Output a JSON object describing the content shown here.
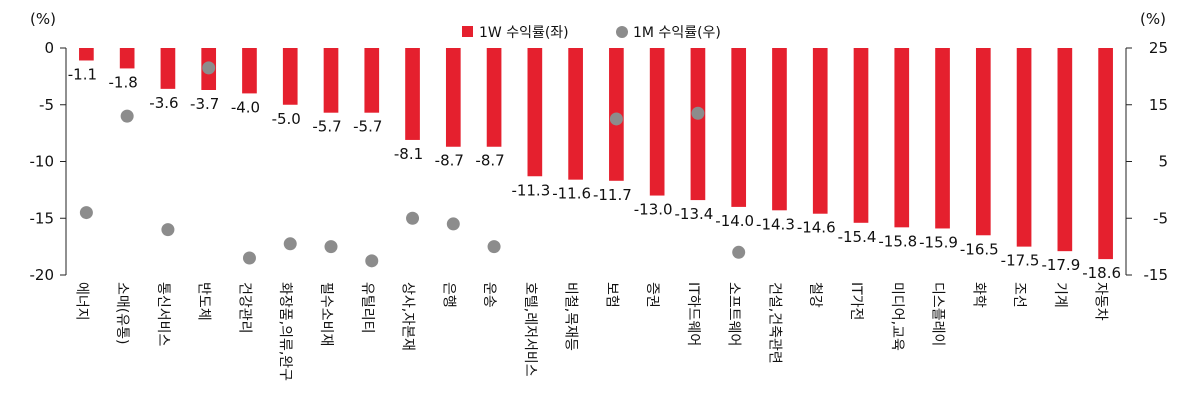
{
  "chart_data": {
    "type": "bar",
    "left_unit": "(%)",
    "right_unit": "(%)",
    "categories": [
      "에너지",
      "소매(유통)",
      "통신서비스",
      "반도체",
      "건강관리",
      "화장품,의류,완구",
      "필수소비재",
      "유틸리티",
      "상사,자본재",
      "은행",
      "운송",
      "호텔,레저서비스",
      "비철,목재등",
      "보험",
      "증권",
      "IT하드웨어",
      "소프트웨어",
      "건설,건축관련",
      "철강",
      "IT가전",
      "미디어,교육",
      "디스플레이",
      "화학",
      "조선",
      "기계",
      "자동차"
    ],
    "series": [
      {
        "name": "1W 수익률(좌)",
        "type": "bar",
        "axis": "left",
        "color": "#e5202e",
        "values": [
          -1.1,
          -1.8,
          -3.6,
          -3.7,
          -4.0,
          -5.0,
          -5.7,
          -5.7,
          -8.1,
          -8.7,
          -8.7,
          -11.3,
          -11.6,
          -11.7,
          -13.0,
          -13.4,
          -14.0,
          -14.3,
          -14.6,
          -15.4,
          -15.8,
          -15.9,
          -16.5,
          -17.5,
          -17.9,
          -18.6
        ],
        "labels": [
          "-1.1",
          "-1.8",
          "-3.6",
          "-3.7",
          "-4.0",
          "-5.0",
          "-5.7",
          "-5.7",
          "-8.1",
          "-8.7",
          "-8.7",
          "-11.3",
          "-11.6",
          "-11.7",
          "-13.0",
          "-13.4",
          "-14.0",
          "-14.3",
          "-14.6",
          "-15.4",
          "-15.8",
          "-15.9",
          "-16.5",
          "-17.5",
          "-17.9",
          "-18.6"
        ]
      },
      {
        "name": "1M 수익률(우)",
        "type": "scatter",
        "axis": "right",
        "color": "#8c8c8c",
        "values": [
          -4,
          13,
          -7,
          21.5,
          -12,
          -9.5,
          -10,
          -12.5,
          -5,
          -6,
          -10,
          null,
          null,
          12.5,
          null,
          13.5,
          -11,
          null,
          null,
          null,
          null,
          null,
          null,
          null,
          null,
          null
        ]
      }
    ],
    "y_left": {
      "min": -20,
      "max": 0,
      "ticks": [
        "0",
        "-5",
        "-10",
        "-15",
        "-20"
      ]
    },
    "y_right": {
      "min": -15,
      "max": 25,
      "ticks": [
        "25",
        "15",
        "5",
        "-5",
        "-15"
      ]
    },
    "legend_position": "top-center",
    "grid": false
  }
}
